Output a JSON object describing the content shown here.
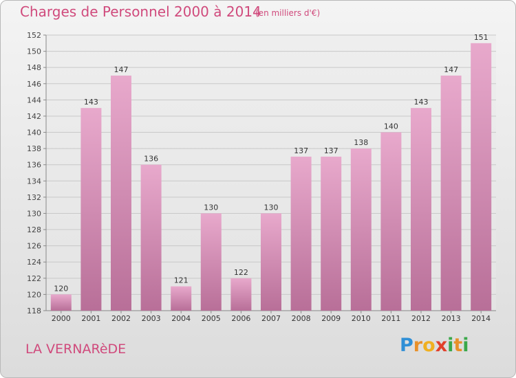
{
  "header": {
    "title": "Charges de Personnel 2000 à 2014",
    "subtitle": "(en milliers d'€)"
  },
  "footer": {
    "location": "LA VERNARèDE",
    "logo_letters": [
      "P",
      "r",
      "o",
      "x",
      "i",
      "t",
      "i"
    ],
    "logo_colors": [
      "#2f8fd6",
      "#e8902a",
      "#f0b020",
      "#e2402a",
      "#3aa84a",
      "#e8902a",
      "#3aa84a"
    ]
  },
  "chart_data": {
    "type": "bar",
    "title": "Charges de Personnel 2000 à 2014",
    "subtitle": "(en milliers d'€)",
    "categories": [
      "2000",
      "2001",
      "2002",
      "2003",
      "2004",
      "2005",
      "2006",
      "2007",
      "2008",
      "2009",
      "2010",
      "2011",
      "2012",
      "2013",
      "2014"
    ],
    "values": [
      120,
      143,
      147,
      136,
      121,
      130,
      122,
      130,
      137,
      137,
      138,
      140,
      143,
      147,
      151
    ],
    "ylim": [
      118,
      152
    ],
    "yticks": [
      118,
      120,
      122,
      124,
      126,
      128,
      130,
      132,
      134,
      136,
      138,
      140,
      142,
      144,
      146,
      148,
      150,
      152
    ],
    "grid": true,
    "colors": {
      "bar_top": "#e8a9cc",
      "bar_bottom": "#b86f98",
      "grid": "#c8c8c8",
      "plot_bg": "#ededed"
    }
  }
}
